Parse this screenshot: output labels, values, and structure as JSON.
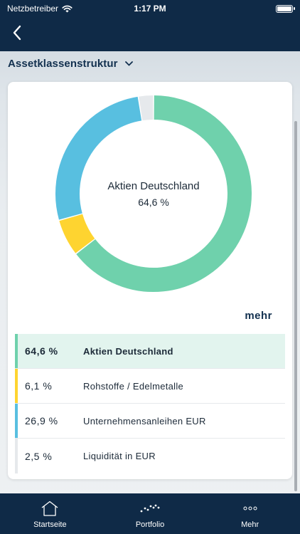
{
  "status_bar": {
    "carrier": "Netzbetreiber",
    "time": "1:17 PM",
    "wifi_icon": "wifi-icon",
    "battery_icon": "battery-icon"
  },
  "nav": {
    "back_icon": "chevron-left-icon"
  },
  "selector": {
    "title": "Assetklassenstruktur",
    "icon": "chevron-down-icon"
  },
  "chart_data": {
    "type": "pie",
    "style": "donut",
    "categories": [
      "Aktien Deutschland",
      "Rohstoffe / Edelmetalle",
      "Unternehmensanleihen EUR",
      "Liquidität in EUR"
    ],
    "values": [
      64.6,
      6.1,
      26.9,
      2.5
    ],
    "colors": [
      "#6fd1ac",
      "#fed430",
      "#58bfe0",
      "#e6e9ec"
    ],
    "center_label": "Aktien Deutschland",
    "center_value": "64,6 %"
  },
  "more_label": "mehr",
  "legend": [
    {
      "pct": "64,6 %",
      "name": "Aktien Deutschland",
      "color": "#6fd1ac",
      "active": true
    },
    {
      "pct": "6,1 %",
      "name": "Rohstoffe / Edelmetalle",
      "color": "#fed430",
      "active": false
    },
    {
      "pct": "26,9 %",
      "name": "Unternehmensanleihen EUR",
      "color": "#58bfe0",
      "active": false
    },
    {
      "pct": "2,5 %",
      "name": "Liquidität in EUR",
      "color": "#e6e9ec",
      "active": false
    }
  ],
  "tabs": [
    {
      "label": "Startseite",
      "icon": "home-icon"
    },
    {
      "label": "Portfolio",
      "icon": "chart-dots-icon"
    },
    {
      "label": "Mehr",
      "icon": "more-dots-icon"
    }
  ],
  "colors": {
    "header_bg": "#0f2a47",
    "title": "#12304f",
    "active_row_bg": "#e2f4ee"
  }
}
